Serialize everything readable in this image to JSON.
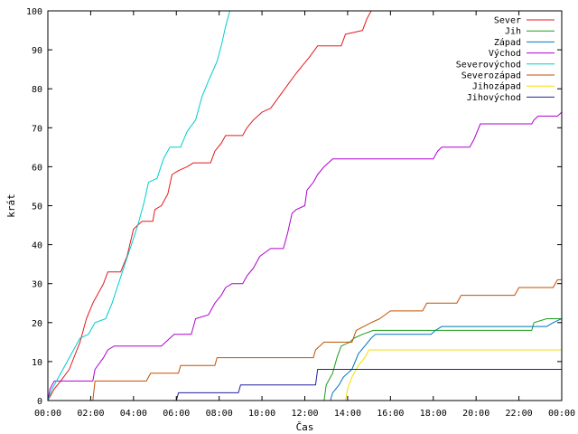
{
  "chart_data": {
    "type": "line",
    "title": "",
    "xlabel": "Čas",
    "ylabel": "krát",
    "xlim": [
      0,
      24
    ],
    "ylim": [
      0,
      100
    ],
    "x_ticks": [
      "00:00",
      "02:00",
      "04:00",
      "06:00",
      "08:00",
      "10:00",
      "12:00",
      "14:00",
      "16:00",
      "18:00",
      "20:00",
      "22:00",
      "00:00"
    ],
    "y_ticks": [
      0,
      10,
      20,
      30,
      40,
      50,
      60,
      70,
      80,
      90,
      100
    ],
    "grid": false,
    "legend_position": "top-right",
    "series": [
      {
        "name": "Sever",
        "color": "#e41a1c",
        "points": [
          [
            0,
            0
          ],
          [
            0.3,
            3
          ],
          [
            0.6,
            5
          ],
          [
            1,
            8
          ],
          [
            1.5,
            15
          ],
          [
            1.8,
            21
          ],
          [
            2.1,
            25
          ],
          [
            2.6,
            30
          ],
          [
            2.8,
            33
          ],
          [
            3.4,
            33
          ],
          [
            3.7,
            37
          ],
          [
            4,
            44
          ],
          [
            4.4,
            46
          ],
          [
            4.9,
            46
          ],
          [
            5,
            49
          ],
          [
            5.3,
            50
          ],
          [
            5.6,
            53
          ],
          [
            5.8,
            58
          ],
          [
            6.1,
            59
          ],
          [
            6.5,
            60
          ],
          [
            6.8,
            61
          ],
          [
            7.6,
            61
          ],
          [
            7.8,
            64
          ],
          [
            8.1,
            66
          ],
          [
            8.3,
            68
          ],
          [
            9.1,
            68
          ],
          [
            9.3,
            70
          ],
          [
            9.6,
            72
          ],
          [
            10,
            74
          ],
          [
            10.4,
            75
          ],
          [
            10.8,
            78
          ],
          [
            11.2,
            81
          ],
          [
            11.6,
            84
          ],
          [
            11.9,
            86
          ],
          [
            12.2,
            88
          ],
          [
            12.6,
            91
          ],
          [
            13.7,
            91
          ],
          [
            13.9,
            94
          ],
          [
            14.7,
            95
          ],
          [
            14.9,
            98
          ],
          [
            15.1,
            100
          ]
        ]
      },
      {
        "name": "Jih",
        "color": "#1a9e1a",
        "points": [
          [
            0,
            0
          ],
          [
            12.9,
            0
          ],
          [
            13.0,
            4
          ],
          [
            13.3,
            7
          ],
          [
            13.5,
            11
          ],
          [
            13.7,
            14
          ],
          [
            14.1,
            15
          ],
          [
            14.3,
            16
          ],
          [
            14.7,
            17
          ],
          [
            15.2,
            18
          ],
          [
            22.6,
            18
          ],
          [
            22.7,
            20
          ],
          [
            23.3,
            21
          ],
          [
            24,
            21
          ]
        ]
      },
      {
        "name": "Západ",
        "color": "#0074c0",
        "points": [
          [
            0,
            0
          ],
          [
            13.2,
            0
          ],
          [
            13.3,
            2
          ],
          [
            13.6,
            4
          ],
          [
            13.8,
            6
          ],
          [
            14.2,
            8
          ],
          [
            14.5,
            12
          ],
          [
            14.8,
            14
          ],
          [
            15.1,
            16
          ],
          [
            15.3,
            17
          ],
          [
            17.9,
            17
          ],
          [
            18.1,
            18
          ],
          [
            18.4,
            19
          ],
          [
            22.6,
            19
          ],
          [
            22.8,
            19
          ],
          [
            23.3,
            19
          ],
          [
            23.6,
            20
          ],
          [
            24,
            21
          ]
        ]
      },
      {
        "name": "Východ",
        "color": "#b000d0",
        "points": [
          [
            0,
            0
          ],
          [
            0.1,
            3
          ],
          [
            0.3,
            5
          ],
          [
            2.1,
            5
          ],
          [
            2.2,
            8
          ],
          [
            2.6,
            11
          ],
          [
            2.8,
            13
          ],
          [
            3.1,
            14
          ],
          [
            5.3,
            14
          ],
          [
            5.5,
            15
          ],
          [
            5.9,
            17
          ],
          [
            6.7,
            17
          ],
          [
            6.9,
            21
          ],
          [
            7.5,
            22
          ],
          [
            7.8,
            25
          ],
          [
            8.1,
            27
          ],
          [
            8.3,
            29
          ],
          [
            8.6,
            30
          ],
          [
            9.1,
            30
          ],
          [
            9.3,
            32
          ],
          [
            9.6,
            34
          ],
          [
            9.9,
            37
          ],
          [
            10.4,
            39
          ],
          [
            11,
            39
          ],
          [
            11.2,
            43
          ],
          [
            11.4,
            48
          ],
          [
            11.6,
            49
          ],
          [
            12,
            50
          ],
          [
            12.1,
            54
          ],
          [
            12.4,
            56
          ],
          [
            12.6,
            58
          ],
          [
            12.9,
            60
          ],
          [
            13.1,
            61
          ],
          [
            13.3,
            62
          ],
          [
            18,
            62
          ],
          [
            18.2,
            64
          ],
          [
            18.4,
            65
          ],
          [
            19.7,
            65
          ],
          [
            19.9,
            67
          ],
          [
            20.2,
            71
          ],
          [
            22.6,
            71
          ],
          [
            22.7,
            72
          ],
          [
            22.9,
            73
          ],
          [
            23.8,
            73
          ],
          [
            24,
            74
          ]
        ]
      },
      {
        "name": "Severovýchod",
        "color": "#00cccc",
        "points": [
          [
            0,
            0
          ],
          [
            0.2,
            3
          ],
          [
            0.5,
            6
          ],
          [
            0.8,
            9
          ],
          [
            1.2,
            13
          ],
          [
            1.5,
            16
          ],
          [
            1.9,
            17
          ],
          [
            2.2,
            20
          ],
          [
            2.7,
            21
          ],
          [
            3.0,
            25
          ],
          [
            3.3,
            30
          ],
          [
            3.6,
            35
          ],
          [
            3.9,
            40
          ],
          [
            4.2,
            45
          ],
          [
            4.5,
            51
          ],
          [
            4.7,
            56
          ],
          [
            5.1,
            57
          ],
          [
            5.4,
            62
          ],
          [
            5.7,
            65
          ],
          [
            6.2,
            65
          ],
          [
            6.5,
            69
          ],
          [
            6.9,
            72
          ],
          [
            7.2,
            78
          ],
          [
            7.5,
            82
          ],
          [
            7.9,
            87
          ],
          [
            8.1,
            91
          ],
          [
            8.3,
            96
          ],
          [
            8.5,
            100
          ]
        ]
      },
      {
        "name": "Severozápad",
        "color": "#c05000",
        "points": [
          [
            0,
            0
          ],
          [
            2.1,
            0
          ],
          [
            2.2,
            5
          ],
          [
            4.6,
            5
          ],
          [
            4.8,
            7
          ],
          [
            6.1,
            7
          ],
          [
            6.2,
            9
          ],
          [
            7.8,
            9
          ],
          [
            7.9,
            11
          ],
          [
            12.4,
            11
          ],
          [
            12.5,
            13
          ],
          [
            12.9,
            15
          ],
          [
            14.2,
            15
          ],
          [
            14.4,
            18
          ],
          [
            15.1,
            20
          ],
          [
            15.5,
            21
          ],
          [
            16,
            23
          ],
          [
            17.5,
            23
          ],
          [
            17.7,
            25
          ],
          [
            19.1,
            25
          ],
          [
            19.3,
            27
          ],
          [
            21.8,
            27
          ],
          [
            22,
            29
          ],
          [
            23.6,
            29
          ],
          [
            23.8,
            31
          ],
          [
            24,
            31
          ]
        ]
      },
      {
        "name": "Jihozápad",
        "color": "#f0e000",
        "points": [
          [
            0,
            0
          ],
          [
            13.9,
            0
          ],
          [
            14.0,
            3
          ],
          [
            14.2,
            6
          ],
          [
            14.5,
            9
          ],
          [
            14.8,
            11
          ],
          [
            15.0,
            13
          ],
          [
            24,
            13
          ]
        ]
      },
      {
        "name": "Jihovýchod",
        "color": "#2020a0",
        "points": [
          [
            0,
            0
          ],
          [
            6.0,
            0
          ],
          [
            6.1,
            2
          ],
          [
            8.9,
            2
          ],
          [
            9.0,
            4
          ],
          [
            12.5,
            4
          ],
          [
            12.6,
            8
          ],
          [
            24,
            8
          ],
          [
            24,
            10
          ]
        ]
      }
    ]
  }
}
